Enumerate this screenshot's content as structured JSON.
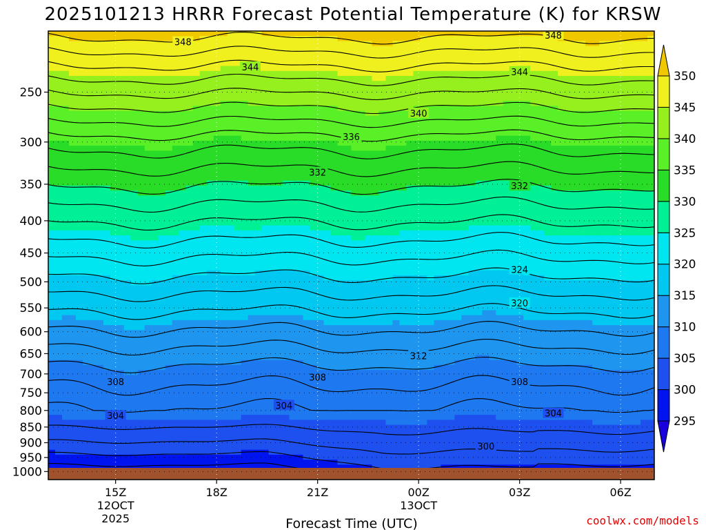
{
  "chart_data": {
    "type": "contour",
    "title": "2025101213 HRRR Forecast Potential Temperature (K) for KRSW",
    "xlabel": "Forecast Time (UTC)",
    "ylabel": "",
    "credit": "coolwx.com/models",
    "x_range_hours": [
      13.0,
      31.0
    ],
    "x_ticks": [
      {
        "hour": 15,
        "lines": [
          "15Z",
          "12OCT",
          "2025"
        ]
      },
      {
        "hour": 18,
        "lines": [
          "18Z"
        ]
      },
      {
        "hour": 21,
        "lines": [
          "21Z"
        ]
      },
      {
        "hour": 24,
        "lines": [
          "00Z",
          "13OCT"
        ]
      },
      {
        "hour": 27,
        "lines": [
          "03Z"
        ]
      },
      {
        "hour": 30,
        "lines": [
          "06Z"
        ]
      }
    ],
    "pressure_range_hpa": [
      1030,
      200
    ],
    "y_ticks": [
      1000,
      950,
      900,
      850,
      800,
      750,
      700,
      650,
      600,
      550,
      500,
      450,
      400,
      350,
      300,
      250
    ],
    "colorbar": {
      "ticks": [
        295,
        300,
        305,
        310,
        315,
        320,
        325,
        330,
        335,
        340,
        345,
        350
      ],
      "bins": [
        {
          "min": 290,
          "max": 295,
          "color": "#1a00dc"
        },
        {
          "min": 295,
          "max": 300,
          "color": "#0014f0"
        },
        {
          "min": 300,
          "max": 305,
          "color": "#1e50f0"
        },
        {
          "min": 305,
          "max": 310,
          "color": "#1e78f0"
        },
        {
          "min": 310,
          "max": 315,
          "color": "#1e96f0"
        },
        {
          "min": 315,
          "max": 320,
          "color": "#00c8f0"
        },
        {
          "min": 320,
          "max": 325,
          "color": "#00e6f0"
        },
        {
          "min": 325,
          "max": 330,
          "color": "#00f096"
        },
        {
          "min": 330,
          "max": 335,
          "color": "#28dc28"
        },
        {
          "min": 335,
          "max": 340,
          "color": "#5af028"
        },
        {
          "min": 340,
          "max": 345,
          "color": "#96f01e"
        },
        {
          "min": 345,
          "max": 350,
          "color": "#f0f01e"
        },
        {
          "min": 350,
          "max": 355,
          "color": "#f0c800"
        }
      ]
    },
    "ground_color": "#a0522d",
    "contour_labels": [
      {
        "value": 348,
        "hour": 17.0,
        "p": 208
      },
      {
        "value": 348,
        "hour": 28.0,
        "p": 203
      },
      {
        "value": 344,
        "hour": 19.0,
        "p": 228
      },
      {
        "value": 344,
        "hour": 27.0,
        "p": 232
      },
      {
        "value": 340,
        "hour": 24.0,
        "p": 270
      },
      {
        "value": 336,
        "hour": 22.0,
        "p": 294
      },
      {
        "value": 332,
        "hour": 21.0,
        "p": 335
      },
      {
        "value": 332,
        "hour": 27.0,
        "p": 352
      },
      {
        "value": 324,
        "hour": 27.0,
        "p": 478
      },
      {
        "value": 320,
        "hour": 27.0,
        "p": 540
      },
      {
        "value": 312,
        "hour": 24.0,
        "p": 655
      },
      {
        "value": 308,
        "hour": 15.0,
        "p": 720
      },
      {
        "value": 308,
        "hour": 21.0,
        "p": 708
      },
      {
        "value": 308,
        "hour": 27.0,
        "p": 720
      },
      {
        "value": 304,
        "hour": 15.0,
        "p": 815
      },
      {
        "value": 304,
        "hour": 20.0,
        "p": 785
      },
      {
        "value": 304,
        "hour": 28.0,
        "p": 808
      },
      {
        "value": 300,
        "hour": 26.0,
        "p": 911
      }
    ]
  }
}
